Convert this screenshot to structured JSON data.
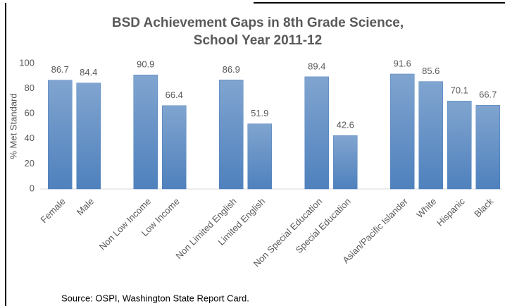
{
  "chart_data": {
    "type": "bar",
    "title": [
      "BSD Achievement Gaps in 8th Grade Science,",
      "School Year 2011-12"
    ],
    "y_label": "% Met Standard",
    "categories": [
      "Female",
      "Male",
      null,
      "Non Low Income",
      "Low Income",
      null,
      "Non Limited English",
      "Limited English",
      null,
      "Non Special Education",
      "Special Education",
      null,
      "Asian/Pacific Islander",
      "White",
      "Hispanic",
      "Black"
    ],
    "values": [
      86.7,
      84.4,
      null,
      90.9,
      66.4,
      null,
      86.9,
      51.9,
      null,
      89.4,
      42.6,
      null,
      91.6,
      85.6,
      70.1,
      66.7
    ],
    "color": "#4f81bd",
    "ylim": [
      0,
      100
    ],
    "yticks": [
      0,
      20,
      40,
      60,
      80,
      100
    ],
    "grid": false,
    "source": "Source: OSPI, Washington State Report Card."
  }
}
